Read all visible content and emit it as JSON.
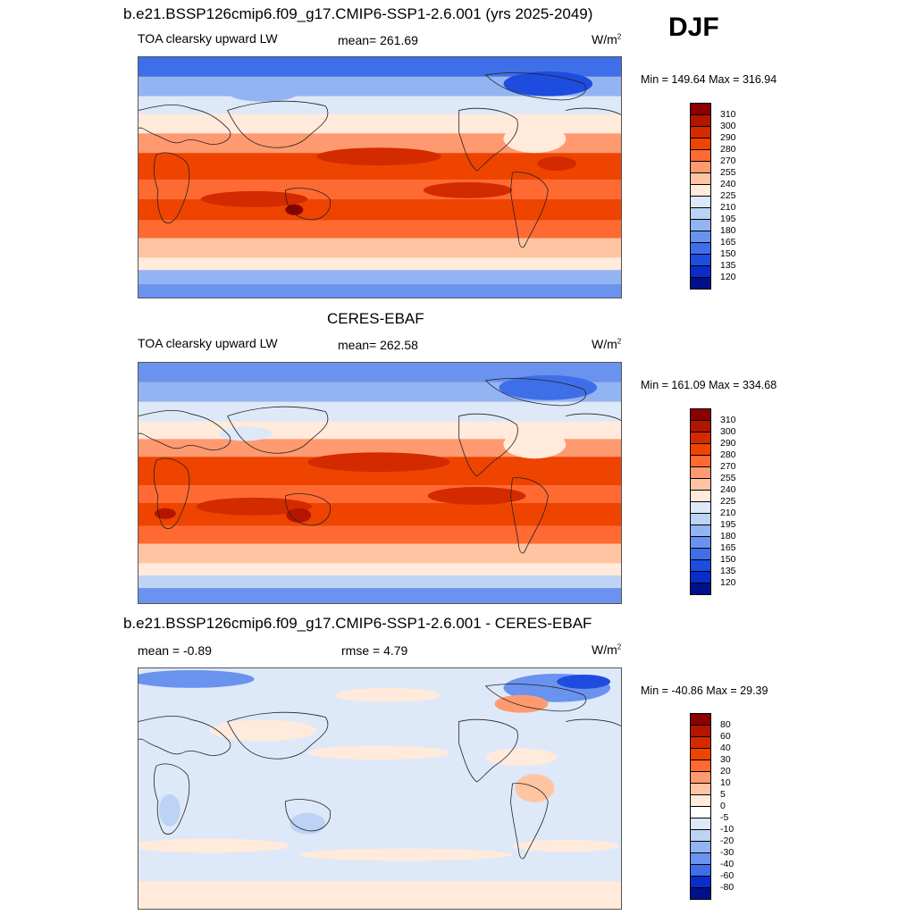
{
  "season": "DJF",
  "panels": [
    {
      "title": "b.e21.BSSP126cmip6.f09_g17.CMIP6-SSP1-2.6.001 (yrs 2025-2049)",
      "left_label": "TOA clearsky upward LW",
      "center_label": "mean= 261.69",
      "units": "W/m",
      "units_sup": "2",
      "minmax": "Min = 149.64 Max = 316.94",
      "colorbar_labels": [
        "310",
        "300",
        "290",
        "280",
        "270",
        "255",
        "240",
        "225",
        "210",
        "195",
        "180",
        "165",
        "150",
        "135",
        "120"
      ],
      "colorbar_colors": [
        "#8b0000",
        "#b31500",
        "#d42a00",
        "#ee4400",
        "#ff6a33",
        "#ff9a70",
        "#ffc5a3",
        "#ffeadc",
        "#dde9f8",
        "#bcd3f5",
        "#93b4f2",
        "#6a93ef",
        "#3f6fe8",
        "#1e4cdf",
        "#0a2cc9",
        "#00108a"
      ]
    },
    {
      "title": "CERES-EBAF",
      "left_label": "TOA clearsky upward LW",
      "center_label": "mean= 262.58",
      "units": "W/m",
      "units_sup": "2",
      "minmax": "Min = 161.09 Max = 334.68",
      "colorbar_labels": [
        "310",
        "300",
        "290",
        "280",
        "270",
        "255",
        "240",
        "225",
        "210",
        "195",
        "180",
        "165",
        "150",
        "135",
        "120"
      ],
      "colorbar_colors": [
        "#8b0000",
        "#b31500",
        "#d42a00",
        "#ee4400",
        "#ff6a33",
        "#ff9a70",
        "#ffc5a3",
        "#ffeadc",
        "#dde9f8",
        "#bcd3f5",
        "#93b4f2",
        "#6a93ef",
        "#3f6fe8",
        "#1e4cdf",
        "#0a2cc9",
        "#00108a"
      ]
    },
    {
      "title": "b.e21.BSSP126cmip6.f09_g17.CMIP6-SSP1-2.6.001 - CERES-EBAF",
      "left_label": "mean =  -0.89",
      "center_label": "rmse =    4.79",
      "units": "W/m",
      "units_sup": "2",
      "minmax": "Min = -40.86 Max =  29.39",
      "colorbar_labels": [
        "80",
        "60",
        "40",
        "30",
        "20",
        "10",
        "5",
        "0",
        "-5",
        "-10",
        "-20",
        "-30",
        "-40",
        "-60",
        "-80"
      ],
      "colorbar_colors": [
        "#8b0000",
        "#b31500",
        "#d42a00",
        "#ee4400",
        "#ff6a33",
        "#ff9a70",
        "#ffc5a3",
        "#ffeadc",
        "#ffffff",
        "#dde9f8",
        "#bcd3f5",
        "#93b4f2",
        "#6a93ef",
        "#3f6fe8",
        "#0a2cc9",
        "#00108a"
      ]
    }
  ]
}
